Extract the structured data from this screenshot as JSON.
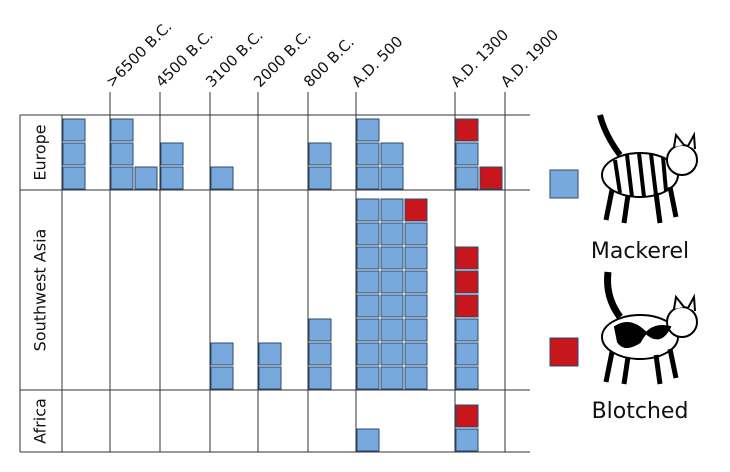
{
  "chart_data": {
    "type": "unit",
    "categories": [
      ">6500 B.C.",
      "4500 B.C.",
      "3100 B.C.",
      "2000 B.C.",
      "800 B.C.",
      "A.D. 500",
      "A.D. 1300",
      "A.D. 1900"
    ],
    "regions": [
      "Europe",
      "Southwest Asia",
      "Africa"
    ],
    "series": [
      {
        "name": "Mackerel",
        "color": "#78a9dc",
        "values": [
          [
            3,
            4,
            2,
            1,
            0,
            2,
            5,
            2
          ],
          [
            0,
            0,
            0,
            2,
            2,
            3,
            23,
            3
          ],
          [
            0,
            0,
            0,
            0,
            0,
            0,
            1,
            1
          ]
        ]
      },
      {
        "name": "Blotched",
        "color": "#c8161d",
        "values": [
          [
            0,
            0,
            0,
            0,
            0,
            0,
            0,
            2
          ],
          [
            0,
            0,
            0,
            0,
            0,
            0,
            1,
            3
          ],
          [
            0,
            0,
            0,
            0,
            0,
            0,
            0,
            1
          ]
        ]
      }
    ]
  }
}
